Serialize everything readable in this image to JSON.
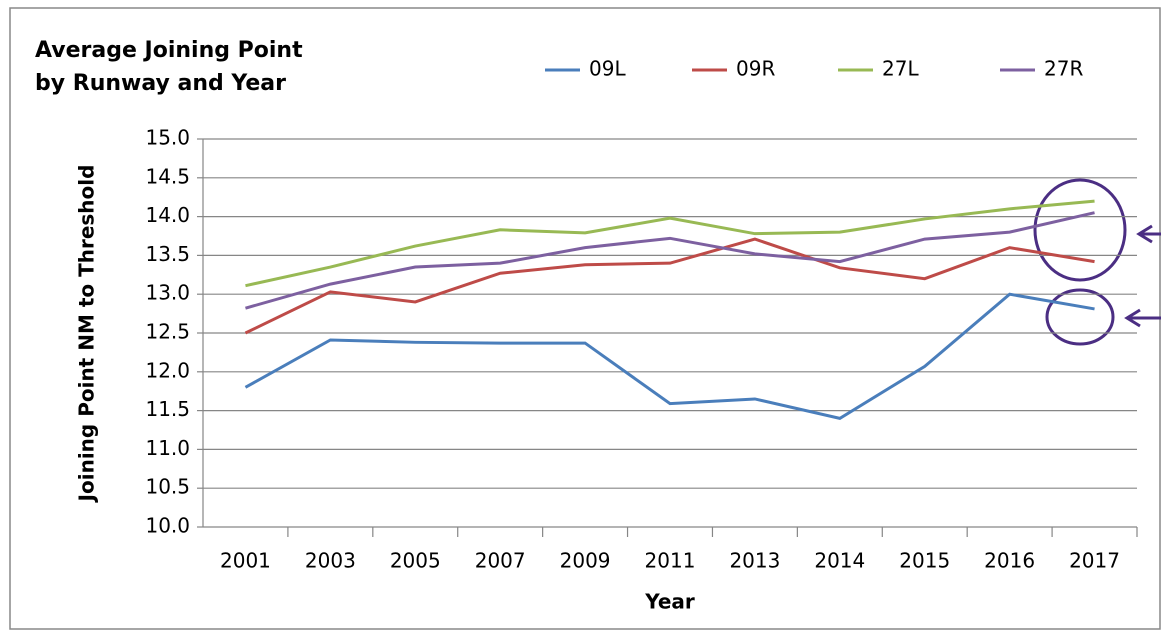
{
  "chart_data": {
    "type": "line",
    "title": [
      "Average Joining Point",
      "by Runway and Year"
    ],
    "x_label": "Year",
    "y_label": "Joining Point NM to Threshold",
    "categories": [
      "2001",
      "2003",
      "2005",
      "2007",
      "2009",
      "2011",
      "2013",
      "2014",
      "2015",
      "2016",
      "2017"
    ],
    "series": [
      {
        "name": "09L",
        "color": "#4a7ebb",
        "values": [
          11.8,
          12.41,
          12.38,
          12.37,
          12.37,
          11.59,
          11.65,
          11.4,
          12.07,
          13.0,
          12.81
        ]
      },
      {
        "name": "09R",
        "color": "#be4b48",
        "values": [
          12.5,
          13.03,
          12.9,
          13.27,
          13.38,
          13.4,
          13.71,
          13.34,
          13.2,
          13.6,
          13.42
        ]
      },
      {
        "name": "27L",
        "color": "#98b954",
        "values": [
          13.11,
          13.35,
          13.62,
          13.83,
          13.79,
          13.98,
          13.78,
          13.8,
          13.97,
          14.1,
          14.2
        ]
      },
      {
        "name": "27R",
        "color": "#7d60a0",
        "values": [
          12.82,
          13.13,
          13.35,
          13.4,
          13.6,
          13.72,
          13.52,
          13.42,
          13.71,
          13.8,
          14.05
        ]
      }
    ],
    "ylim": [
      10,
      15
    ],
    "yticks": [
      {
        "value": 10,
        "label": "10.0"
      },
      {
        "value": 10.5,
        "label": "10.5"
      },
      {
        "value": 11,
        "label": "11.0"
      },
      {
        "value": 11.5,
        "label": "11.5"
      },
      {
        "value": 12,
        "label": "12.0"
      },
      {
        "value": 12.5,
        "label": "12.5"
      },
      {
        "value": 13,
        "label": "13.0"
      },
      {
        "value": 13.5,
        "label": "13.5"
      },
      {
        "value": 14,
        "label": "14.0"
      },
      {
        "value": 14.5,
        "label": "14.5"
      },
      {
        "value": 15,
        "label": "15.0"
      }
    ],
    "grid": true,
    "legend": "top"
  }
}
